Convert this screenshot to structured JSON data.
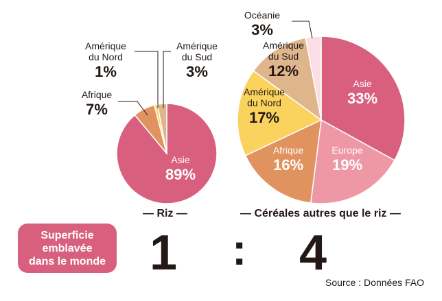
{
  "chart_data": [
    {
      "type": "pie",
      "title": "Riz",
      "slices": [
        {
          "label": [
            "Asie"
          ],
          "value_label": "89%",
          "value": 89,
          "color": "#d8607e"
        },
        {
          "label": [
            "Afrique"
          ],
          "value_label": "7%",
          "value": 7,
          "color": "#e0925f"
        },
        {
          "label": [
            "Amérique",
            "du Nord"
          ],
          "value_label": "1%",
          "value": 1,
          "color": "#fad35e"
        },
        {
          "label": [
            "Amérique",
            "du Sud"
          ],
          "value_label": "3%",
          "value": 3,
          "color": "#dfb58c"
        }
      ]
    },
    {
      "type": "pie",
      "title": "Céréales autres que le riz",
      "slices": [
        {
          "label": [
            "Asie"
          ],
          "value_label": "33%",
          "value": 33,
          "color": "#d8607e"
        },
        {
          "label": [
            "Europe"
          ],
          "value_label": "19%",
          "value": 19,
          "color": "#ee98a6"
        },
        {
          "label": [
            "Afrique"
          ],
          "value_label": "16%",
          "value": 16,
          "color": "#e0925f"
        },
        {
          "label": [
            "Amérique",
            "du Nord"
          ],
          "value_label": "17%",
          "value": 17,
          "color": "#fad35e"
        },
        {
          "label": [
            "Amérique",
            "du Sud"
          ],
          "value_label": "12%",
          "value": 12,
          "color": "#dfb58c"
        },
        {
          "label": [
            "Océanie"
          ],
          "value_label": "3%",
          "value": 3,
          "color": "#fbdde5"
        }
      ]
    }
  ],
  "titles": {
    "riz": "— Riz —",
    "cereales": "— Céréales autres que le riz —"
  },
  "badge": "Superficie\nemblavée\ndans le monde",
  "ratio": {
    "left": "1",
    "separator": ":",
    "right": "4"
  },
  "source": "Source : Données FAO",
  "colors": {
    "text": "#231815",
    "inside_text": "#ffffff",
    "slice_edge": "#ffffff"
  }
}
